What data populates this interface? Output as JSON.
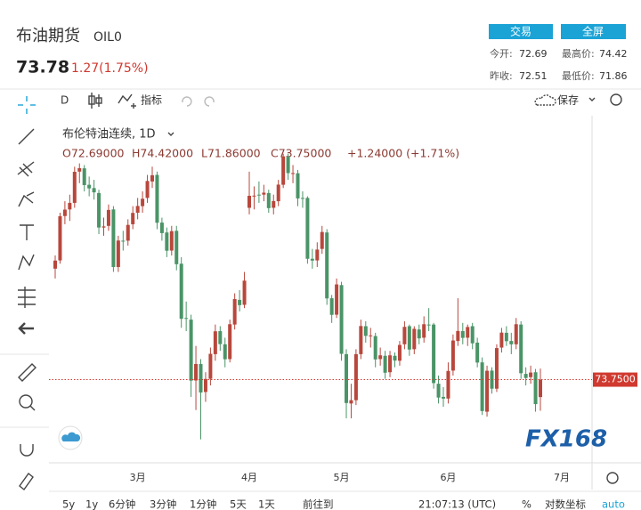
{
  "header": {
    "title": "布油期货",
    "symbol": "OIL0",
    "price": "73.78",
    "change": "1.27(1.75%)",
    "buttons": [
      "交易",
      "全屏"
    ],
    "stats": [
      {
        "label": "今开:",
        "value": "72.69"
      },
      {
        "label": "最高价:",
        "value": "74.42"
      },
      {
        "label": "昨收:",
        "value": "72.51"
      },
      {
        "label": "最低价:",
        "value": "71.86"
      }
    ]
  },
  "toolbar": {
    "interval": "D",
    "indicators": "指标",
    "save": "保存"
  },
  "chart_data": {
    "type": "candlestick",
    "title": "布伦特油连续, 1D",
    "legend": [
      "O72.69000",
      "H74.42000",
      "L71.86000",
      "C73.75000",
      "+1.24000 (+1.71%)"
    ],
    "up_color": "#b8473c",
    "down_color": "#4a9467",
    "categories": [
      null,
      null,
      null,
      null,
      null,
      null,
      null,
      null,
      null,
      null,
      null,
      null,
      null,
      null,
      null,
      null,
      null,
      "3月",
      null,
      null,
      null,
      null,
      null,
      null,
      null,
      null,
      null,
      null,
      null,
      null,
      null,
      null,
      null,
      null,
      null,
      null,
      null,
      null,
      null,
      null,
      "4月",
      null,
      null,
      null,
      null,
      null,
      null,
      null,
      null,
      null,
      null,
      null,
      null,
      null,
      null,
      null,
      null,
      null,
      null,
      "5月",
      null,
      null,
      null,
      null,
      null,
      null,
      null,
      null,
      null,
      null,
      null,
      null,
      null,
      null,
      null,
      null,
      null,
      null,
      null,
      null,
      null,
      "6月",
      null,
      null,
      null,
      null,
      null,
      null,
      null,
      null,
      null,
      null,
      null,
      null,
      null,
      null,
      null,
      null,
      null,
      null,
      null
    ],
    "next_month_label": "7月",
    "open": [
      80.5,
      81.0,
      83.7,
      84.1,
      84.5,
      86.4,
      86.6,
      85.6,
      85.4,
      85.1,
      83.0,
      83.1,
      84.1,
      80.6,
      82.2,
      82.2,
      83.2,
      83.9,
      84.3,
      84.8,
      85.8,
      86.2,
      83.3,
      82.7,
      81.6,
      82.8,
      80.8,
      77.5,
      77.4,
      73.7,
      74.7,
      73.0,
      73.8,
      75.3,
      76.7,
      75.9,
      75.0,
      77.1,
      78.6,
      78.3,
      84.2,
      84.9,
      85.0,
      85.0,
      85.1,
      84.2,
      84.6,
      85.6,
      87.3,
      86.3,
      86.3,
      84.8,
      84.8,
      81.1,
      81.0,
      81.7,
      82.7,
      78.7,
      77.7,
      79.5,
      75.3,
      72.3,
      72.5,
      75.3,
      77.0,
      76.4,
      76.4,
      75.0,
      75.2,
      74.2,
      75.2,
      74.9,
      75.9,
      77.0,
      75.6,
      76.8,
      76.3,
      77.1,
      77.1,
      73.5,
      72.7,
      72.6,
      74.3,
      76.1,
      76.7,
      76.3,
      77.0,
      76.0,
      74.8,
      71.8,
      74.3,
      73.2,
      75.7,
      76.6,
      76.1,
      75.9,
      77.1,
      74.1,
      73.9,
      74.2,
      72.69
    ],
    "high": [
      81.3,
      83.9,
      84.6,
      85.0,
      86.7,
      86.9,
      86.8,
      86.1,
      85.9,
      85.3,
      83.6,
      84.4,
      84.3,
      82.5,
      82.8,
      83.5,
      84.3,
      84.8,
      85.2,
      86.2,
      86.7,
      86.4,
      83.6,
      83.0,
      83.1,
      83.1,
      81.2,
      78.5,
      77.7,
      75.8,
      75.0,
      74.2,
      75.7,
      77.1,
      77.0,
      76.3,
      77.4,
      79.0,
      79.2,
      80.3,
      86.4,
      85.5,
      85.8,
      85.6,
      85.3,
      85.0,
      85.9,
      87.49,
      87.5,
      86.8,
      86.5,
      85.2,
      84.9,
      81.7,
      82.1,
      83.1,
      82.9,
      78.9,
      79.9,
      79.7,
      75.6,
      73.5,
      75.6,
      77.4,
      77.3,
      76.9,
      76.6,
      75.7,
      75.5,
      75.5,
      75.4,
      76.1,
      77.3,
      77.1,
      77.0,
      77.1,
      77.6,
      78.1,
      77.2,
      74.0,
      73.3,
      74.8,
      76.5,
      78.7,
      77.2,
      77.1,
      77.2,
      76.3,
      75.1,
      74.6,
      74.5,
      75.9,
      76.9,
      77.0,
      76.6,
      77.5,
      77.3,
      74.5,
      74.6,
      74.4,
      74.42
    ],
    "low": [
      79.9,
      80.8,
      83.2,
      83.4,
      84.2,
      85.7,
      85.2,
      84.9,
      84.7,
      82.6,
      82.5,
      82.8,
      80.3,
      80.3,
      81.6,
      81.9,
      82.9,
      83.5,
      83.9,
      84.5,
      85.4,
      82.9,
      82.2,
      81.2,
      81.3,
      80.4,
      76.9,
      76.7,
      72.7,
      71.9,
      70.12,
      72.4,
      73.4,
      74.9,
      75.5,
      74.5,
      74.8,
      76.8,
      77.9,
      78.1,
      83.8,
      84.1,
      84.5,
      84.6,
      83.9,
      83.8,
      84.3,
      85.4,
      85.9,
      85.7,
      84.3,
      84.2,
      80.8,
      80.5,
      80.6,
      81.4,
      78.3,
      77.2,
      77.5,
      74.9,
      71.4,
      71.4,
      72.2,
      75.0,
      76.0,
      75.7,
      74.5,
      74.6,
      73.8,
      73.9,
      74.5,
      74.6,
      75.6,
      75.2,
      75.3,
      75.9,
      76.0,
      76.7,
      73.2,
      72.3,
      72.1,
      72.3,
      74.0,
      75.8,
      75.9,
      75.8,
      75.6,
      74.5,
      71.6,
      71.5,
      72.9,
      73.0,
      75.4,
      75.8,
      75.3,
      75.6,
      73.8,
      73.4,
      73.5,
      71.8,
      71.86
    ],
    "close": [
      80.99,
      83.69,
      84.09,
      84.5,
      86.39,
      86.61,
      85.58,
      85.38,
      85.14,
      83.0,
      83.07,
      84.07,
      80.6,
      82.21,
      82.16,
      83.16,
      83.89,
      84.31,
      84.75,
      85.83,
      86.18,
      83.29,
      82.66,
      81.59,
      82.78,
      80.77,
      77.45,
      77.45,
      73.69,
      74.7,
      72.97,
      73.79,
      75.32,
      76.69,
      75.91,
      74.99,
      77.12,
      78.65,
      78.28,
      79.77,
      84.93,
      84.94,
      84.99,
      85.12,
      84.18,
      84.61,
      85.61,
      87.33,
      86.31,
      86.31,
      84.77,
      84.77,
      81.1,
      80.99,
      81.66,
      82.73,
      78.69,
      77.69,
      79.54,
      75.32,
      72.33,
      72.5,
      75.3,
      77.01,
      76.41,
      76.44,
      74.98,
      75.23,
      74.17,
      75.23,
      74.91,
      75.86,
      76.96,
      75.58,
      76.84,
      76.26,
      77.12,
      77.07,
      73.54,
      72.66,
      72.6,
      74.28,
      76.13,
      76.71,
      76.29,
      76.95,
      75.96,
      74.79,
      71.84,
      74.29,
      73.2,
      75.67,
      76.61,
      76.09,
      75.9,
      77.12,
      74.14,
      73.85,
      74.18,
      72.26,
      73.75
    ],
    "ylim": [
      68.8,
      89.8
    ],
    "last_price": {
      "value": 73.75,
      "label": "73.7500"
    },
    "watermark": "FX168"
  },
  "bottom_bar": [
    "5y",
    "1y",
    "6分钟",
    "3分钟",
    "1分钟",
    "5天",
    "1天",
    "前往到",
    "21:07:13 (UTC)",
    "%",
    "对数坐标",
    "auto"
  ]
}
